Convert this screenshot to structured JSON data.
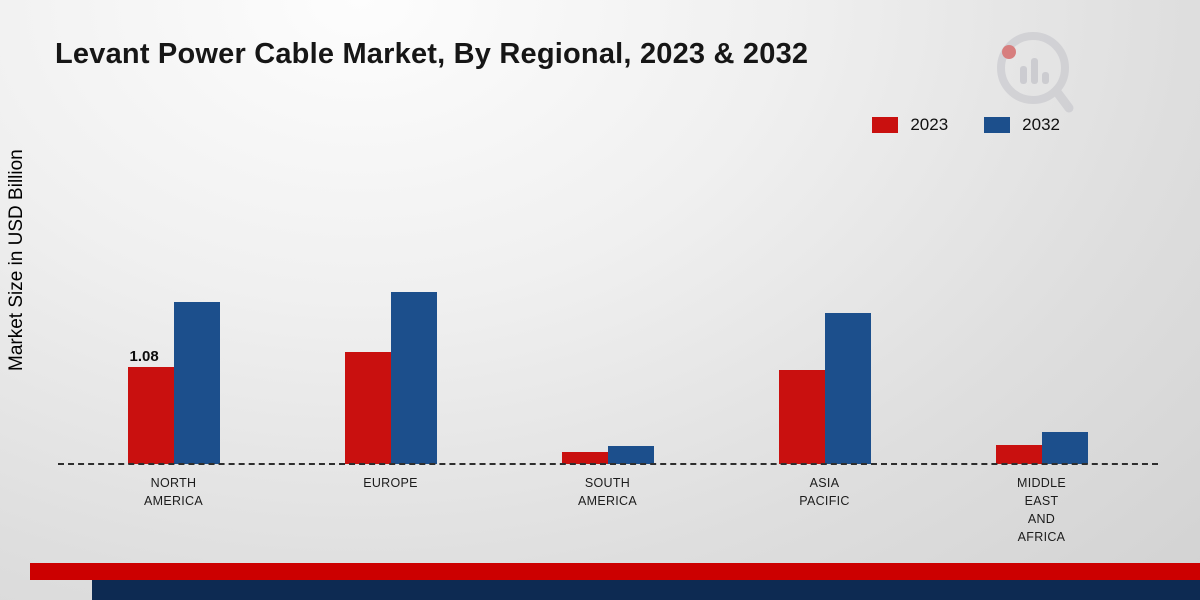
{
  "title": "Levant Power Cable Market, By Regional, 2023 & 2032",
  "ylabel": "Market Size in USD Billion",
  "colors": {
    "series_2023": "#c9100f",
    "series_2032": "#1c4f8c",
    "footer_red": "#cc0000",
    "footer_navy": "#0d2a52",
    "logo_gray": "#c3c3c9",
    "logo_red": "#cc2a2a"
  },
  "chart_data": {
    "type": "bar",
    "title": "Levant Power Cable Market, By Regional, 2023 & 2032",
    "xlabel": "",
    "ylabel": "Market Size in USD Billion",
    "grid": false,
    "legend_position": "top-right",
    "ylim": [
      0,
      2.2
    ],
    "categories": [
      "NORTH AMERICA",
      "EUROPE",
      "SOUTH AMERICA",
      "ASIA PACIFIC",
      "MIDDLE EAST AND AFRICA"
    ],
    "category_lines": [
      [
        "NORTH",
        "AMERICA"
      ],
      [
        "EUROPE"
      ],
      [
        "SOUTH",
        "AMERICA"
      ],
      [
        "ASIA",
        "PACIFIC"
      ],
      [
        "MIDDLE",
        "EAST",
        "AND",
        "AFRICA"
      ]
    ],
    "series": [
      {
        "name": "2023",
        "color": "#c9100f",
        "values": [
          1.08,
          1.24,
          0.13,
          1.04,
          0.21
        ]
      },
      {
        "name": "2032",
        "color": "#1c4f8c",
        "values": [
          1.8,
          1.91,
          0.2,
          1.68,
          0.36
        ]
      }
    ],
    "bar_labels": [
      {
        "series": 0,
        "category": 0,
        "text": "1.08"
      }
    ]
  }
}
